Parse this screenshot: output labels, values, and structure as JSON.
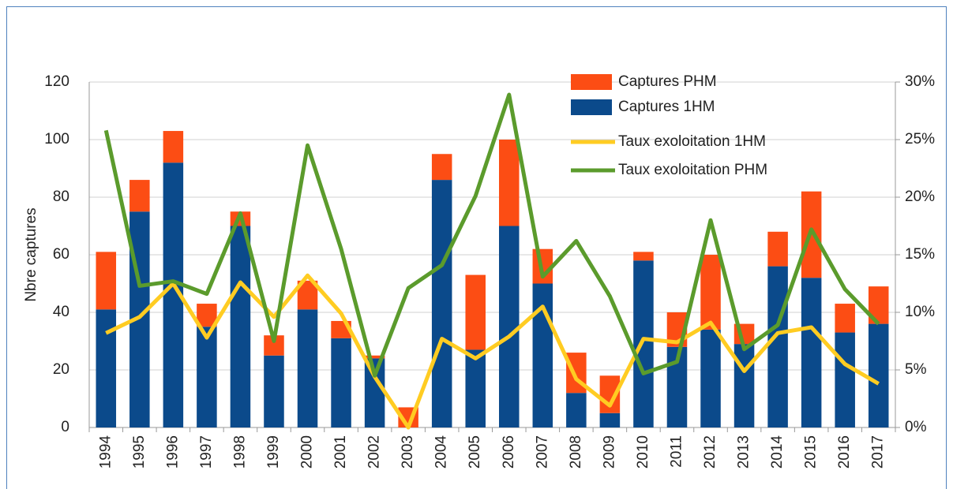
{
  "chart_data": {
    "type": "bar_line",
    "y_label": "Nbre captures",
    "categories": [
      "1994",
      "1995",
      "1996",
      "1997",
      "1998",
      "1999",
      "2000",
      "2001",
      "2002",
      "2003",
      "2004",
      "2005",
      "2006",
      "2007",
      "2008",
      "2009",
      "2010",
      "2011",
      "2012",
      "2013",
      "2014",
      "2015",
      "2016",
      "2017"
    ],
    "series": [
      {
        "name": "Captures PHM",
        "type": "bar",
        "color": "#fc4d14",
        "values": [
          20,
          11,
          11,
          8,
          5,
          7,
          10,
          6,
          1,
          7,
          9,
          26,
          30,
          12,
          14,
          13,
          3,
          12,
          26,
          7,
          12,
          30,
          10,
          13
        ]
      },
      {
        "name": "Captures 1HM",
        "type": "bar",
        "color": "#0b4a8b",
        "values": [
          41,
          75,
          92,
          35,
          70,
          25,
          41,
          31,
          24,
          0,
          86,
          27,
          70,
          50,
          12,
          5,
          58,
          28,
          34,
          29,
          56,
          52,
          33,
          36
        ]
      },
      {
        "name": "Taux exoloitation 1HM",
        "type": "line",
        "axis": "y2",
        "color": "#ffcc22",
        "values": [
          8.2,
          9.6,
          12.5,
          7.8,
          12.6,
          9.6,
          13.2,
          9.9,
          4.4,
          0,
          7.7,
          6.0,
          7.9,
          10.5,
          4.2,
          1.9,
          7.7,
          7.4,
          9.1,
          4.9,
          8.2,
          8.7,
          5.5,
          3.8
        ]
      },
      {
        "name": "Taux exoloitation PHM",
        "type": "line",
        "axis": "y2",
        "color": "#5b9b2c",
        "values": [
          25.8,
          12.3,
          12.7,
          11.6,
          18.6,
          7.5,
          24.5,
          15.5,
          4.5,
          12.1,
          14.1,
          20.1,
          28.9,
          13.1,
          16.2,
          11.4,
          4.7,
          5.7,
          18.0,
          6.8,
          8.9,
          17.2,
          12.0,
          9.0
        ]
      }
    ],
    "ylim": [
      0,
      120
    ],
    "yticks": [
      0,
      20,
      40,
      60,
      80,
      100,
      120
    ],
    "y2lim": [
      0,
      30
    ],
    "y2ticks": [
      {
        "value": 0,
        "label": "0%"
      },
      {
        "value": 5,
        "label": "5%"
      },
      {
        "value": 10,
        "label": "10%"
      },
      {
        "value": 15,
        "label": "15%"
      },
      {
        "value": 20,
        "label": "20%"
      },
      {
        "value": 25,
        "label": "25%"
      },
      {
        "value": 30,
        "label": "30%"
      }
    ],
    "grid": true,
    "legend": "top-right"
  }
}
